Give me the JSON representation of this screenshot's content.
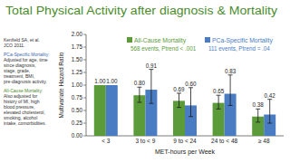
{
  "chart_data": {
    "type": "bar",
    "title": "Total Physical Activity after diagnosis & Mortality",
    "x_label": "MET-hours per Week",
    "y_label": "Multivariate Hazard Ratio",
    "categories": [
      "< 3",
      "3 to < 9",
      "9 to < 24",
      "24 to < 48",
      "≥ 48"
    ],
    "series": [
      {
        "name": "All-Cause Mortality",
        "color": "#5b9b3a",
        "values": [
          1.0,
          0.8,
          0.69,
          0.65,
          0.38
        ],
        "value_labels": [
          "1.00",
          "0.80",
          "0.69",
          "0.65",
          "0.38"
        ],
        "ci_low": [
          null,
          0.66,
          0.56,
          0.53,
          0.27
        ],
        "ci_high": [
          null,
          0.96,
          0.84,
          0.8,
          0.53
        ],
        "note": "568 events, Ptrend < .001"
      },
      {
        "name": "PCa-Specific Mortality",
        "color": "#4a7cc4",
        "values": [
          1.0,
          0.91,
          0.6,
          0.83,
          0.42
        ],
        "value_labels": [
          "1.00",
          "0.91",
          "0.60",
          "0.83",
          "0.42"
        ],
        "ci_low": [
          null,
          0.64,
          0.38,
          0.6,
          0.25
        ],
        "ci_high": [
          null,
          1.31,
          0.95,
          1.2,
          0.72
        ],
        "note": "111 events, Ptrend = .04"
      }
    ],
    "ylim": [
      0,
      2
    ],
    "yticks": [
      {
        "value": 0,
        "label": "0.00"
      },
      0.25,
      {
        "value": 0.5,
        "label": "0.50"
      },
      0.75,
      {
        "value": 1,
        "label": "1.00"
      },
      1.25,
      {
        "value": 1.5,
        "label": "1.50"
      },
      1.75,
      {
        "value": 2,
        "label": "2.00"
      }
    ],
    "grid": false,
    "legend": "top",
    "data_labels": true,
    "annotations": [
      {
        "text": [
          "Kenfield SA, et al.",
          "JCO 2011."
        ]
      },
      {
        "text": [
          "PCa-Specific Mortality:",
          "Adjusted for age, time",
          "since diagnosis,",
          "stage, grade,",
          "treatment, BMI,",
          "pre-diagnosis activity."
        ]
      },
      {
        "text": [
          "All-Cause Mortality:",
          "Also adjusted for",
          "history of MI, high",
          "blood pressure,",
          "elevated cholesterol,",
          "smoking, alcohol",
          "intake, comorbidities."
        ]
      }
    ]
  }
}
